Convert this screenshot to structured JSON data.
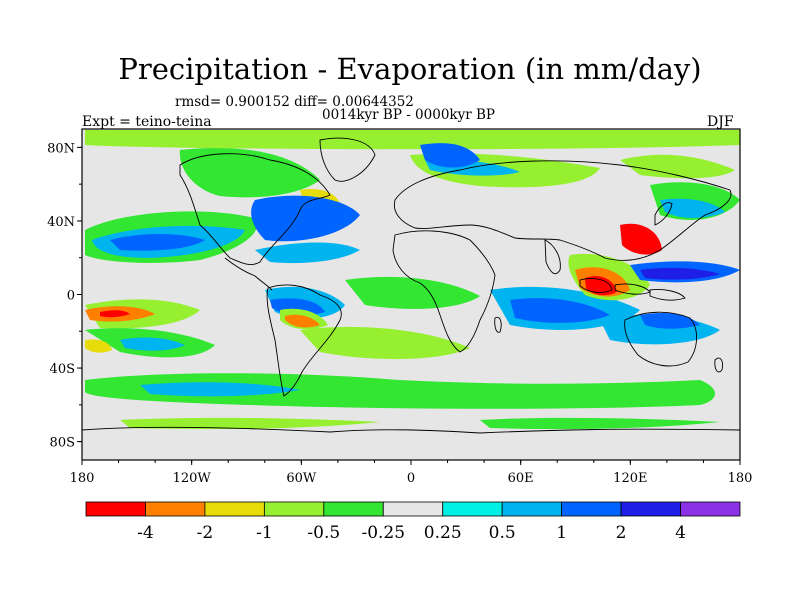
{
  "title": "Precipitation - Evaporation (in mm/day)",
  "stats": "rmsd= 0.900152 diff= 0.00644352",
  "period": "0014kyr BP - 0000kyr BP",
  "experiment": "Expt = teino-teina",
  "season": "DJF",
  "lat_labels": [
    "80N",
    "40N",
    "0",
    "40S",
    "80S"
  ],
  "lon_labels": [
    "180",
    "120W",
    "60W",
    "0",
    "60E",
    "120E",
    "180"
  ],
  "colorbar": {
    "colors": [
      "#ff0000",
      "#ff8000",
      "#e6dc0a",
      "#96f030",
      "#32e632",
      "#e6e6e6",
      "#00f0e6",
      "#00b4f0",
      "#0064ff",
      "#1e1ee6",
      "#8c32e6"
    ],
    "labels": [
      "-4",
      "-2",
      "-1",
      "-0.5",
      "-0.25",
      "0.25",
      "0.5",
      "1",
      "2",
      "4"
    ]
  }
}
